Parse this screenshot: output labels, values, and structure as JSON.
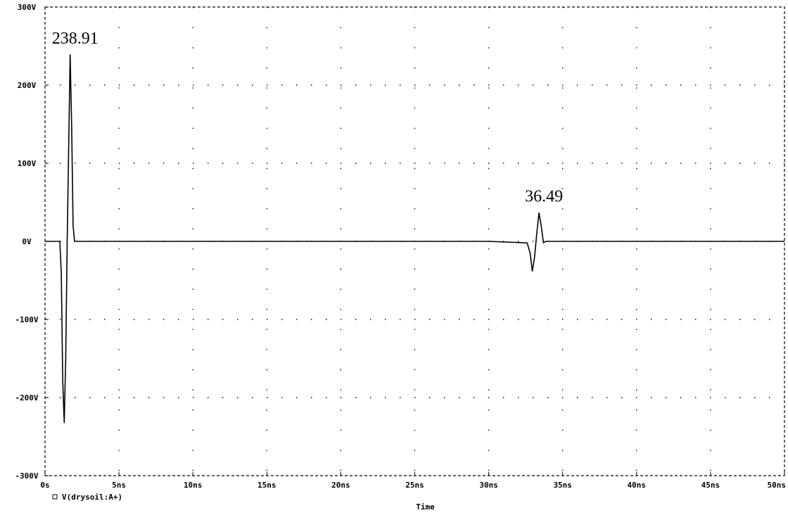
{
  "chart_data": {
    "type": "line",
    "title": "",
    "xlabel": "Time",
    "ylabel": "",
    "xlim": [
      0,
      50
    ],
    "ylim": [
      -300,
      300
    ],
    "x_unit": "ns",
    "y_unit": "V",
    "grid": "dotted",
    "legend_position": "bottom-left",
    "x_ticks": [
      0,
      5,
      10,
      15,
      20,
      25,
      30,
      35,
      40,
      45,
      50
    ],
    "x_tick_labels": [
      "0s",
      "5ns",
      "10ns",
      "15ns",
      "20ns",
      "25ns",
      "30ns",
      "35ns",
      "40ns",
      "45ns",
      "50ns"
    ],
    "y_ticks": [
      300,
      200,
      100,
      0,
      -100,
      -200,
      -300
    ],
    "y_tick_labels": [
      "300V",
      "200V",
      "100V",
      "0V",
      "-100V",
      "-200V",
      "-300V"
    ],
    "series": [
      {
        "name": "V(drysoil:A+)",
        "color": "#000000",
        "x": [
          0,
          0.8,
          1.0,
          1.1,
          1.2,
          1.3,
          1.4,
          1.5,
          1.6,
          1.7,
          1.8,
          1.9,
          2.0,
          2.1,
          10,
          20,
          30,
          32.6,
          32.8,
          32.95,
          33.1,
          33.25,
          33.4,
          33.55,
          33.7,
          33.85,
          35,
          40,
          45,
          50
        ],
        "y": [
          0,
          0,
          0,
          -40,
          -180,
          -232,
          -150,
          0,
          120,
          238.91,
          150,
          20,
          0,
          0,
          0,
          0,
          0,
          -2,
          -15,
          -38,
          -20,
          10,
          36.49,
          20,
          -2,
          0,
          0,
          0,
          0,
          0
        ]
      }
    ],
    "annotations": [
      {
        "text": "238.91",
        "x": 1.7,
        "y": 238.91
      },
      {
        "text": "36.49",
        "x": 33.4,
        "y": 36.49
      }
    ]
  }
}
